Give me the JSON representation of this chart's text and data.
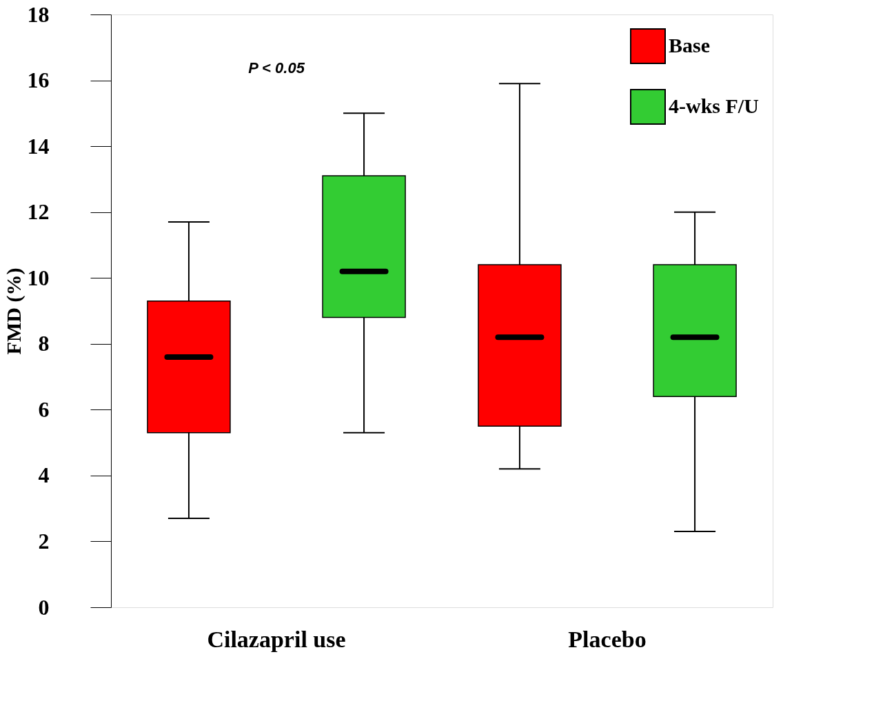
{
  "chart_data": {
    "type": "box",
    "ylabel": "FMD (%)",
    "categories": [
      "Cilazapril use",
      "Placebo"
    ],
    "series": [
      {
        "name": "Base",
        "color": "#ff0000",
        "boxes": [
          {
            "low": 2.7,
            "q1": 5.3,
            "median": 7.6,
            "q3": 9.3,
            "high": 11.7
          },
          {
            "low": 4.2,
            "q1": 5.5,
            "median": 8.2,
            "q3": 10.4,
            "high": 15.9
          }
        ]
      },
      {
        "name": "4-wks F/U",
        "color": "#33cc33",
        "boxes": [
          {
            "low": 5.3,
            "q1": 8.8,
            "median": 10.2,
            "q3": 13.1,
            "high": 15.0
          },
          {
            "low": 2.3,
            "q1": 6.4,
            "median": 8.2,
            "q3": 10.4,
            "high": 12.0
          }
        ]
      }
    ],
    "ylim": [
      0,
      18
    ],
    "yticks": [
      0,
      2,
      4,
      6,
      8,
      10,
      12,
      14,
      16,
      18
    ],
    "grid": false,
    "legend": "top right",
    "annotations": [
      "P < 0.05"
    ]
  }
}
